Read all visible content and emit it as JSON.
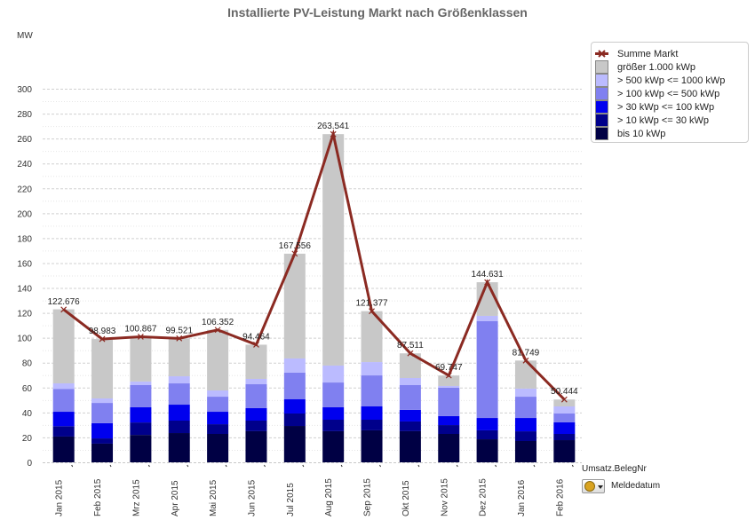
{
  "chart_data": {
    "type": "bar",
    "stacked": true,
    "title": "Installierte PV-Leistung Markt nach Größenklassen",
    "ylabel": "MW",
    "xlabel": "",
    "ylim": [
      0,
      300
    ],
    "yticks": [
      0,
      20,
      40,
      60,
      80,
      100,
      120,
      140,
      160,
      180,
      200,
      220,
      240,
      260,
      280,
      300
    ],
    "grid": true,
    "legend_position": "top-right",
    "categories": [
      "Jan 2015",
      "Feb 2015",
      "Mrz 2015",
      "Apr 2015",
      "Mai 2015",
      "Jun 2015",
      "Jul 2015",
      "Aug 2015",
      "Sep 2015",
      "Okt 2015",
      "Nov 2015",
      "Dez 2015",
      "Jan 2016",
      "Feb 2016"
    ],
    "series": [
      {
        "name": "bis 10 kWp",
        "color": "#000044",
        "values": [
          20.7,
          15.0,
          22.0,
          23.5,
          22.8,
          25.0,
          29.2,
          25.0,
          25.7,
          25.0,
          22.8,
          18.5,
          17.1,
          17.8
        ]
      },
      {
        "name": "> 10 kWp <= 30 kWp",
        "color": "#00008b",
        "values": [
          8.3,
          4.2,
          10.0,
          10.0,
          7.8,
          8.5,
          10.0,
          9.2,
          8.5,
          7.8,
          7.1,
          7.2,
          7.8,
          5.0
        ]
      },
      {
        "name": "> 30 kWp <= 100 kWp",
        "color": "#0000ee",
        "values": [
          11.6,
          12.2,
          12.2,
          12.8,
          10.0,
          10.0,
          11.4,
          10.0,
          10.7,
          9.3,
          7.2,
          9.9,
          10.7,
          9.3
        ]
      },
      {
        "name": "> 100 kWp <= 500 kWp",
        "color": "#8080f0",
        "values": [
          18.4,
          16.3,
          17.8,
          17.1,
          12.1,
          19.2,
          21.4,
          19.9,
          24.9,
          19.9,
          22.8,
          77.7,
          17.1,
          7.1
        ]
      },
      {
        "name": "> 500 kWp <= 1000 kWp",
        "color": "#bbbbff",
        "values": [
          4.4,
          3.6,
          2.9,
          5.7,
          5.0,
          4.3,
          11.4,
          13.6,
          10.7,
          5.7,
          1.4,
          4.3,
          6.5,
          5.7
        ]
      },
      {
        "name": "größer 1.000 kWp",
        "color": "#c8c8c8",
        "values": [
          59.476,
          47.683,
          35.967,
          30.421,
          48.652,
          27.464,
          84.156,
          185.841,
          40.877,
          19.811,
          8.447,
          27.031,
          22.549,
          5.544
        ]
      }
    ],
    "line_series": {
      "name": "Summe Markt",
      "color": "#8b2a22",
      "values": [
        122.676,
        98.983,
        100.867,
        99.521,
        106.352,
        94.464,
        167.556,
        263.541,
        121.377,
        87.511,
        69.747,
        144.631,
        81.749,
        50.444
      ],
      "labels": [
        "122.676",
        "98.983",
        "100.867",
        "99.521",
        "106.352",
        "94.464",
        "167.556",
        "263.541",
        "121.377",
        "87.511",
        "69.747",
        "144.631",
        "81.749",
        "50.444"
      ]
    },
    "legend": [
      "Summe Markt",
      "größer 1.000 kWp",
      "> 500 kWp <= 1000 kWp",
      "> 100 kWp <= 500 kWp",
      "> 30 kWp <= 100 kWp",
      "> 10 kWp <= 30 kWp",
      "bis 10 kWp"
    ]
  },
  "controls": {
    "measure_label": "Umsatz.BelegNr",
    "sort_icon": "sort-cycle-icon",
    "dimension_label": "Meldedatum"
  }
}
